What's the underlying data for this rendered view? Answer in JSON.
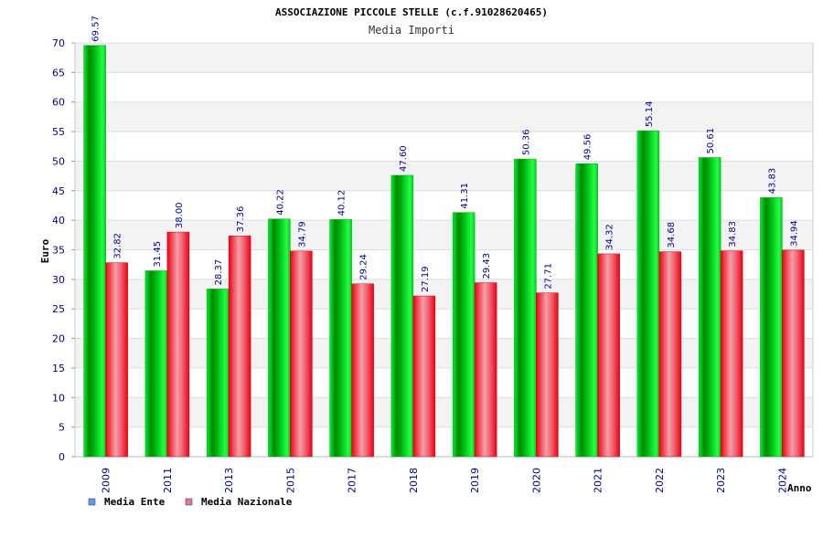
{
  "chart_data": {
    "type": "bar",
    "title": "ASSOCIAZIONE PICCOLE STELLE (c.f.91028620465)",
    "subtitle": "Media Importi",
    "xlabel": "Anno",
    "ylabel": "Euro",
    "ylim": [
      0,
      70
    ],
    "ytick_step": 5,
    "grid": true,
    "legend_position": "bottom-left",
    "categories": [
      "2009",
      "2011",
      "2013",
      "2015",
      "2017",
      "2018",
      "2019",
      "2020",
      "2021",
      "2022",
      "2023",
      "2024"
    ],
    "series": [
      {
        "name": "Media Ente",
        "legend_color": "#6699ee",
        "color": "#00cc22",
        "values": [
          69.57,
          31.45,
          28.37,
          40.22,
          40.12,
          47.6,
          41.31,
          50.36,
          49.56,
          55.14,
          50.61,
          43.83
        ],
        "labels": [
          "69.57",
          "31.45",
          "28.37",
          "40.22",
          "40.12",
          "47.60",
          "41.31",
          "50.36",
          "49.56",
          "55.14",
          "50.61",
          "43.83"
        ]
      },
      {
        "name": "Media Nazionale",
        "legend_color": "#dd77aa",
        "color": "#ee1122",
        "values": [
          32.82,
          38.0,
          37.36,
          34.79,
          29.24,
          27.19,
          29.43,
          27.71,
          34.32,
          34.68,
          34.83,
          34.94
        ],
        "labels": [
          "32.82",
          "38.00",
          "37.36",
          "34.79",
          "29.24",
          "27.19",
          "29.43",
          "27.71",
          "34.32",
          "34.68",
          "34.83",
          "34.94"
        ]
      }
    ]
  }
}
